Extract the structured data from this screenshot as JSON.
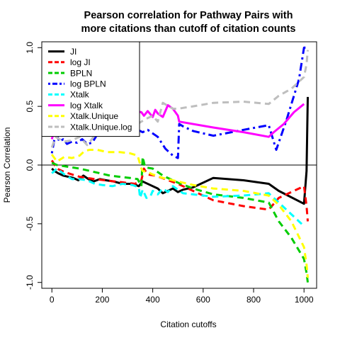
{
  "chart_data": {
    "type": "line",
    "title_line1": "Pearson correlation for Pathway Pairs with",
    "title_line2": "more citations than cutoff of citation counts",
    "xlabel": "Citation cutoffs",
    "ylabel": "Pearson Correlation",
    "xlim": [
      -40,
      1050
    ],
    "ylim": [
      -1.05,
      1.05
    ],
    "xticks": [
      0,
      200,
      400,
      600,
      800,
      1000
    ],
    "yticks": [
      -1.0,
      -0.5,
      0.0,
      0.5,
      1.0
    ],
    "xtick_labels": [
      "0",
      "200",
      "400",
      "600",
      "800",
      "1000"
    ],
    "ytick_labels": [
      "-1.0",
      "-0.5",
      "0.0",
      "0.5",
      "1.0"
    ],
    "hline": 0,
    "grid": false,
    "legend_position": "top-left",
    "series": [
      {
        "name": "JI",
        "color": "#000000",
        "dash": "solid",
        "width": 3,
        "x": [
          0,
          10,
          25,
          45,
          65,
          85,
          105,
          125,
          145,
          165,
          190,
          215,
          245,
          280,
          320,
          345,
          360,
          390,
          420,
          440,
          480,
          500,
          520,
          560,
          640,
          760,
          860,
          900,
          1000,
          1010,
          1015
        ],
        "y": [
          -0.03,
          -0.05,
          -0.07,
          -0.09,
          -0.1,
          -0.11,
          -0.13,
          -0.09,
          -0.12,
          -0.14,
          -0.12,
          -0.13,
          -0.14,
          -0.16,
          -0.16,
          -0.18,
          -0.14,
          -0.17,
          -0.2,
          -0.24,
          -0.2,
          -0.23,
          -0.21,
          -0.19,
          -0.11,
          -0.13,
          -0.16,
          -0.22,
          -0.33,
          -0.05,
          0.58
        ]
      },
      {
        "name": "log JI",
        "color": "#ff0000",
        "dash": "dashed",
        "width": 3,
        "x": [
          0,
          20,
          50,
          80,
          110,
          140,
          170,
          210,
          250,
          290,
          330,
          355,
          365,
          380,
          410,
          450,
          500,
          560,
          640,
          760,
          860,
          900,
          1000,
          1010,
          1015
        ],
        "y": [
          0.04,
          -0.03,
          -0.06,
          -0.08,
          -0.1,
          -0.11,
          -0.12,
          -0.13,
          -0.14,
          -0.15,
          -0.16,
          -0.13,
          -0.03,
          -0.08,
          -0.09,
          -0.12,
          -0.16,
          -0.22,
          -0.3,
          -0.35,
          -0.38,
          -0.28,
          -0.18,
          -0.35,
          -0.48
        ]
      },
      {
        "name": "BPLN",
        "color": "#00cc00",
        "dash": "dashed",
        "width": 3,
        "x": [
          0,
          20,
          50,
          80,
          110,
          150,
          190,
          230,
          270,
          310,
          340,
          355,
          360,
          370,
          400,
          440,
          500,
          560,
          640,
          760,
          860,
          900,
          950,
          1000,
          1010,
          1015
        ],
        "y": [
          0.02,
          0.0,
          -0.01,
          -0.02,
          -0.03,
          -0.05,
          -0.07,
          -0.09,
          -0.1,
          -0.11,
          -0.12,
          -0.18,
          0.07,
          -0.02,
          -0.03,
          -0.09,
          -0.15,
          -0.2,
          -0.25,
          -0.28,
          -0.32,
          -0.48,
          -0.62,
          -0.8,
          -0.92,
          -1.0
        ]
      },
      {
        "name": "log BPLN",
        "color": "#0000ff",
        "dash": "dotdash",
        "width": 3,
        "x": [
          0,
          15,
          30,
          45,
          60,
          80,
          100,
          120,
          140,
          160,
          180,
          200,
          230,
          260,
          290,
          330,
          360,
          380,
          400,
          420,
          450,
          480,
          500,
          505,
          520,
          560,
          640,
          760,
          860,
          890,
          930,
          980,
          1000,
          1010
        ],
        "y": [
          0.1,
          0.28,
          0.2,
          0.22,
          0.18,
          0.2,
          0.19,
          0.22,
          0.18,
          0.19,
          0.26,
          0.26,
          0.28,
          0.27,
          0.33,
          0.31,
          0.28,
          0.3,
          0.27,
          0.24,
          0.14,
          0.08,
          0.06,
          0.35,
          0.33,
          0.29,
          0.25,
          0.3,
          0.34,
          0.13,
          0.38,
          0.73,
          1.0,
          1.0
        ]
      },
      {
        "name": "Xtalk",
        "color": "#00ffff",
        "dash": "dashed",
        "width": 3,
        "x": [
          0,
          20,
          50,
          80,
          110,
          140,
          170,
          200,
          240,
          280,
          320,
          345,
          350,
          360,
          375,
          390,
          400,
          420,
          440,
          460,
          480,
          500,
          520,
          560,
          640,
          760,
          860,
          900,
          950,
          1000
        ],
        "y": [
          -0.07,
          -0.03,
          -0.08,
          -0.12,
          -0.12,
          -0.13,
          -0.16,
          -0.17,
          -0.18,
          -0.16,
          -0.17,
          -0.19,
          -0.28,
          -0.21,
          -0.28,
          -0.27,
          -0.22,
          -0.25,
          -0.2,
          -0.23,
          -0.18,
          -0.21,
          -0.24,
          -0.25,
          -0.27,
          -0.26,
          -0.24,
          -0.32,
          -0.42,
          -0.52
        ]
      },
      {
        "name": "log Xtalk",
        "color": "#ff00ff",
        "dash": "solid",
        "width": 3,
        "x": [
          0,
          10,
          20,
          35,
          55,
          80,
          110,
          140,
          170,
          200,
          240,
          280,
          320,
          355,
          365,
          380,
          400,
          410,
          420,
          440,
          460,
          480,
          500,
          505,
          640,
          760,
          860,
          880,
          920,
          960,
          1000
        ],
        "y": [
          0.22,
          0.3,
          0.25,
          0.28,
          0.32,
          0.34,
          0.37,
          0.43,
          0.41,
          0.44,
          0.45,
          0.48,
          0.46,
          0.45,
          0.42,
          0.46,
          0.41,
          0.47,
          0.44,
          0.41,
          0.51,
          0.48,
          0.42,
          0.37,
          0.32,
          0.28,
          0.24,
          0.28,
          0.35,
          0.45,
          0.52
        ]
      },
      {
        "name": "Xtalk.Unique",
        "color": "#ffff00",
        "dash": "dashed",
        "width": 3,
        "x": [
          0,
          20,
          50,
          80,
          110,
          130,
          150,
          180,
          220,
          270,
          310,
          340,
          355,
          360,
          380,
          400,
          440,
          500,
          560,
          640,
          760,
          860,
          900,
          950,
          1000,
          1010,
          1015
        ],
        "y": [
          0.09,
          0.03,
          0.07,
          0.06,
          0.08,
          0.12,
          0.13,
          0.13,
          0.11,
          0.11,
          0.1,
          0.08,
          -0.03,
          -0.05,
          -0.06,
          -0.08,
          -0.11,
          -0.14,
          -0.17,
          -0.2,
          -0.22,
          -0.26,
          -0.34,
          -0.48,
          -0.7,
          -0.85,
          -0.96
        ]
      },
      {
        "name": "Xtalk.Unique.log",
        "color": "#bebebe",
        "dash": "dashed",
        "width": 3,
        "x": [
          0,
          15,
          30,
          50,
          80,
          110,
          140,
          180,
          220,
          260,
          300,
          340,
          370,
          400,
          420,
          440,
          480,
          500,
          560,
          640,
          760,
          860,
          900,
          950,
          1000,
          1010,
          1015
        ],
        "y": [
          0.15,
          0.24,
          0.22,
          0.2,
          0.21,
          0.24,
          0.17,
          0.28,
          0.32,
          0.33,
          0.34,
          0.35,
          0.39,
          0.42,
          0.37,
          0.53,
          0.48,
          0.48,
          0.5,
          0.53,
          0.54,
          0.52,
          0.59,
          0.65,
          0.75,
          0.86,
          0.98
        ]
      }
    ]
  }
}
